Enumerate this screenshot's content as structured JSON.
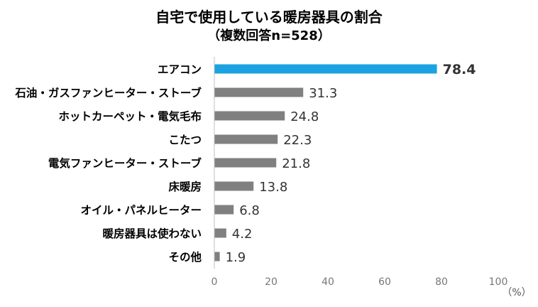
{
  "chart_data": {
    "type": "bar",
    "orientation": "horizontal",
    "title": "自宅で使用している暖房器具の割合",
    "subtitle": "（複数回答n=528）",
    "categories": [
      "エアコン",
      "石油・ガスファンヒーター・ストーブ",
      "ホットカーペット・電気毛布",
      "こたつ",
      "電気ファンヒーター・ストーブ",
      "床暖房",
      "オイル・パネルヒーター",
      "暖房器具は使わない",
      "その他"
    ],
    "values": [
      78.4,
      31.3,
      24.8,
      22.3,
      21.8,
      13.8,
      6.8,
      4.2,
      1.9
    ],
    "value_labels": [
      "78.4",
      "31.3",
      "24.8",
      "22.3",
      "21.8",
      "13.8",
      "6.8",
      "4.2",
      "1.9"
    ],
    "xlim": [
      0,
      100
    ],
    "xticks": [
      "0",
      "20",
      "40",
      "60",
      "80",
      "100"
    ],
    "unit_label": "（%）",
    "grid": false,
    "colors": {
      "highlight": "#1aa3e0",
      "default": "#808080",
      "highlight_label": "#1a7db0"
    }
  }
}
